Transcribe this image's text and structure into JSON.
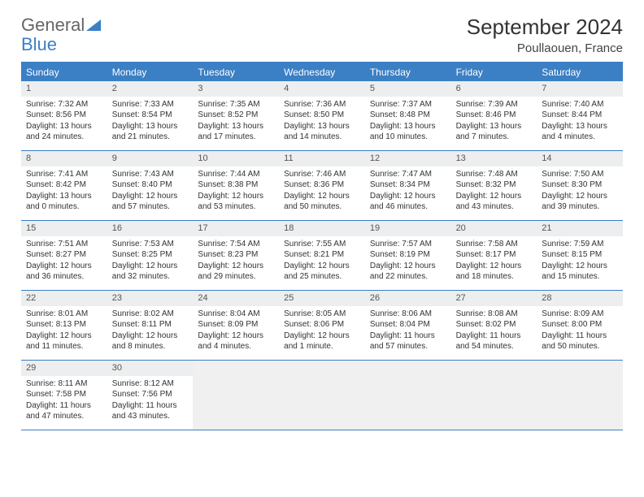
{
  "logo": {
    "part1": "General",
    "part2": "Blue"
  },
  "title": "September 2024",
  "location": "Poullaouen, France",
  "colors": {
    "accent": "#3b7fc4",
    "daynum_bg": "#eceeef",
    "text": "#333333",
    "header_text": "#ffffff",
    "cell_border": "#3b7fc4"
  },
  "day_headers": [
    "Sunday",
    "Monday",
    "Tuesday",
    "Wednesday",
    "Thursday",
    "Friday",
    "Saturday"
  ],
  "days": [
    {
      "n": "1",
      "sr": "7:32 AM",
      "ss": "8:56 PM",
      "dh": "13",
      "dm": "24"
    },
    {
      "n": "2",
      "sr": "7:33 AM",
      "ss": "8:54 PM",
      "dh": "13",
      "dm": "21"
    },
    {
      "n": "3",
      "sr": "7:35 AM",
      "ss": "8:52 PM",
      "dh": "13",
      "dm": "17"
    },
    {
      "n": "4",
      "sr": "7:36 AM",
      "ss": "8:50 PM",
      "dh": "13",
      "dm": "14"
    },
    {
      "n": "5",
      "sr": "7:37 AM",
      "ss": "8:48 PM",
      "dh": "13",
      "dm": "10"
    },
    {
      "n": "6",
      "sr": "7:39 AM",
      "ss": "8:46 PM",
      "dh": "13",
      "dm": "7"
    },
    {
      "n": "7",
      "sr": "7:40 AM",
      "ss": "8:44 PM",
      "dh": "13",
      "dm": "4"
    },
    {
      "n": "8",
      "sr": "7:41 AM",
      "ss": "8:42 PM",
      "dh": "13",
      "dm": "0"
    },
    {
      "n": "9",
      "sr": "7:43 AM",
      "ss": "8:40 PM",
      "dh": "12",
      "dm": "57"
    },
    {
      "n": "10",
      "sr": "7:44 AM",
      "ss": "8:38 PM",
      "dh": "12",
      "dm": "53"
    },
    {
      "n": "11",
      "sr": "7:46 AM",
      "ss": "8:36 PM",
      "dh": "12",
      "dm": "50"
    },
    {
      "n": "12",
      "sr": "7:47 AM",
      "ss": "8:34 PM",
      "dh": "12",
      "dm": "46"
    },
    {
      "n": "13",
      "sr": "7:48 AM",
      "ss": "8:32 PM",
      "dh": "12",
      "dm": "43"
    },
    {
      "n": "14",
      "sr": "7:50 AM",
      "ss": "8:30 PM",
      "dh": "12",
      "dm": "39"
    },
    {
      "n": "15",
      "sr": "7:51 AM",
      "ss": "8:27 PM",
      "dh": "12",
      "dm": "36"
    },
    {
      "n": "16",
      "sr": "7:53 AM",
      "ss": "8:25 PM",
      "dh": "12",
      "dm": "32"
    },
    {
      "n": "17",
      "sr": "7:54 AM",
      "ss": "8:23 PM",
      "dh": "12",
      "dm": "29"
    },
    {
      "n": "18",
      "sr": "7:55 AM",
      "ss": "8:21 PM",
      "dh": "12",
      "dm": "25"
    },
    {
      "n": "19",
      "sr": "7:57 AM",
      "ss": "8:19 PM",
      "dh": "12",
      "dm": "22"
    },
    {
      "n": "20",
      "sr": "7:58 AM",
      "ss": "8:17 PM",
      "dh": "12",
      "dm": "18"
    },
    {
      "n": "21",
      "sr": "7:59 AM",
      "ss": "8:15 PM",
      "dh": "12",
      "dm": "15"
    },
    {
      "n": "22",
      "sr": "8:01 AM",
      "ss": "8:13 PM",
      "dh": "12",
      "dm": "11"
    },
    {
      "n": "23",
      "sr": "8:02 AM",
      "ss": "8:11 PM",
      "dh": "12",
      "dm": "8"
    },
    {
      "n": "24",
      "sr": "8:04 AM",
      "ss": "8:09 PM",
      "dh": "12",
      "dm": "4"
    },
    {
      "n": "25",
      "sr": "8:05 AM",
      "ss": "8:06 PM",
      "dh": "12",
      "dm": "1"
    },
    {
      "n": "26",
      "sr": "8:06 AM",
      "ss": "8:04 PM",
      "dh": "11",
      "dm": "57"
    },
    {
      "n": "27",
      "sr": "8:08 AM",
      "ss": "8:02 PM",
      "dh": "11",
      "dm": "54"
    },
    {
      "n": "28",
      "sr": "8:09 AM",
      "ss": "8:00 PM",
      "dh": "11",
      "dm": "50"
    },
    {
      "n": "29",
      "sr": "8:11 AM",
      "ss": "7:58 PM",
      "dh": "11",
      "dm": "47"
    },
    {
      "n": "30",
      "sr": "8:12 AM",
      "ss": "7:56 PM",
      "dh": "11",
      "dm": "43"
    }
  ],
  "labels": {
    "sunrise": "Sunrise: ",
    "sunset": "Sunset: ",
    "daylight": "Daylight: ",
    "hours": " hours",
    "and": "and ",
    "minutes_singular": " minute.",
    "minutes_plural": " minutes."
  }
}
